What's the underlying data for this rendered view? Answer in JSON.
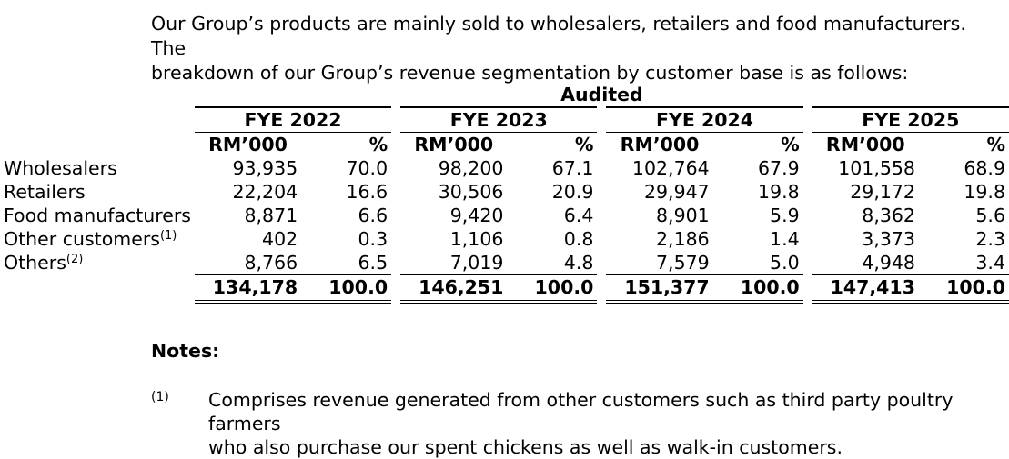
{
  "intro": {
    "line1": "Our Group’s products are mainly sold to wholesalers, retailers and food manufacturers. The",
    "line2": "breakdown of our Group’s revenue segmentation by customer base is as follows:"
  },
  "table": {
    "audited_label": "Audited",
    "years": [
      "FYE 2022",
      "FYE 2023",
      "FYE 2024",
      "FYE 2025"
    ],
    "unit_rm": "RM’000",
    "unit_pct": "%",
    "rows": [
      {
        "label": "Wholesalers",
        "sup": "",
        "values": [
          "93,935",
          "70.0",
          "98,200",
          "67.1",
          "102,764",
          "67.9",
          "101,558",
          "68.9"
        ]
      },
      {
        "label": "Retailers",
        "sup": "",
        "values": [
          "22,204",
          "16.6",
          "30,506",
          "20.9",
          "29,947",
          "19.8",
          "29,172",
          "19.8"
        ]
      },
      {
        "label": "Food manufacturers",
        "sup": "",
        "values": [
          "8,871",
          "6.6",
          "9,420",
          "6.4",
          "8,901",
          "5.9",
          "8,362",
          "5.6"
        ]
      },
      {
        "label": "Other customers",
        "sup": "(1)",
        "values": [
          "402",
          "0.3",
          "1,106",
          "0.8",
          "2,186",
          "1.4",
          "3,373",
          "2.3"
        ]
      },
      {
        "label": "Others",
        "sup": "(2)",
        "values": [
          "8,766",
          "6.5",
          "7,019",
          "4.8",
          "7,579",
          "5.0",
          "4,948",
          "3.4"
        ]
      }
    ],
    "total": [
      "134,178",
      "100.0",
      "146,251",
      "100.0",
      "151,377",
      "100.0",
      "147,413",
      "100.0"
    ]
  },
  "notes": {
    "title": "Notes:",
    "items": [
      {
        "marker": "(1)",
        "line1": "Comprises revenue generated from other customers such as third party poultry farmers",
        "line2": "who also purchase our spent chickens as well as walk-in customers."
      }
    ]
  }
}
